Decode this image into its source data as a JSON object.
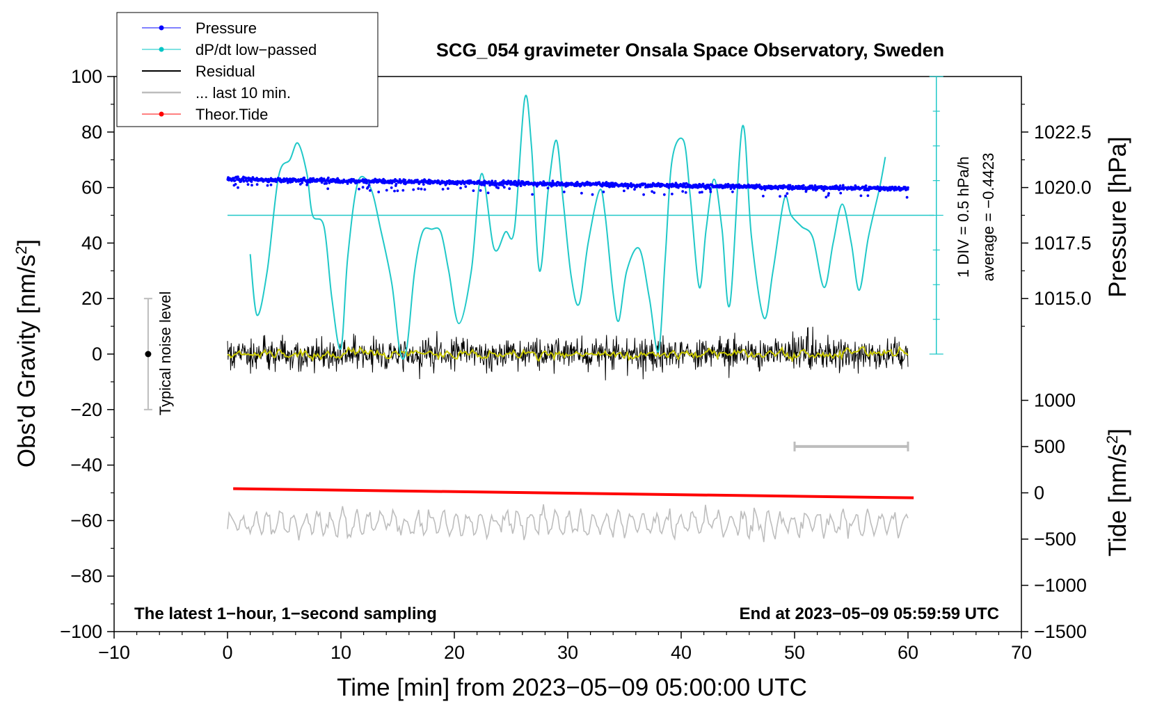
{
  "chart_data": {
    "type": "line",
    "title": "SCG_054 gravimeter Onsala Space Observatory, Sweden",
    "xlabel": "Time [min] from 2023−05−09 05:00:00 UTC",
    "ylabel_left": "Obs'd Gravity [nm/s",
    "ylabel_left_sup": "2",
    "ylabel_left_close": "]",
    "ylabel_right_pressure": "Pressure [hPa]",
    "ylabel_right_tide": "Tide [nm/s",
    "ylabel_right_tide_sup": "2",
    "ylabel_right_tide_close": "]",
    "xlim": [
      -10,
      70
    ],
    "ylim": [
      -100,
      100
    ],
    "x_ticks": [
      -10,
      0,
      10,
      20,
      30,
      40,
      50,
      60,
      70
    ],
    "x_tick_labels": [
      "−10",
      "0",
      "10",
      "20",
      "30",
      "40",
      "50",
      "60",
      "70"
    ],
    "y_ticks": [
      -100,
      -80,
      -60,
      -40,
      -20,
      0,
      20,
      40,
      60,
      80,
      100
    ],
    "y_tick_labels": [
      "−100",
      "−80",
      "−60",
      "−40",
      "−20",
      "0",
      "20",
      "40",
      "60",
      "80",
      "100"
    ],
    "pressure_axis": {
      "ticks": [
        1015.0,
        1017.5,
        1020.0,
        1022.5
      ],
      "tick_labels": [
        "1015.0",
        "1017.5",
        "1020.0",
        "1022.5"
      ],
      "gravity_equiv": [
        20,
        40,
        60,
        80
      ]
    },
    "tide_axis": {
      "ticks": [
        -1500,
        -1000,
        -500,
        0,
        500,
        1000
      ],
      "tick_labels": [
        "−1500",
        "−1000",
        "−500",
        "0",
        "500",
        "1000"
      ],
      "gravity_equiv": [
        -100,
        -83.33,
        -66.67,
        -50,
        -33.33,
        -16.67
      ]
    },
    "legend": [
      {
        "label": "Pressure",
        "color": "#0000ff",
        "marker": true
      },
      {
        "label": "dP/dt low−passed",
        "color": "#00c5c5",
        "marker": true
      },
      {
        "label": "Residual",
        "color": "#000000",
        "marker": false
      },
      {
        "label": "... last 10 min.",
        "color": "#bdbdbd",
        "marker": false
      },
      {
        "label": "Theor.Tide",
        "color": "#ff0000",
        "marker": true
      }
    ],
    "series": [
      {
        "name": "Pressure",
        "color": "#0000ff",
        "x_range": [
          0,
          60
        ],
        "gravity_start": 63,
        "gravity_end": 59.5,
        "scatter_sd": 0.9
      },
      {
        "name": "dP/dt low−passed",
        "color": "#20c8c8",
        "x": [
          2,
          2.6,
          3.5,
          4.5,
          5.5,
          6.2,
          7.0,
          7.5,
          8.5,
          9.2,
          10.0,
          10.6,
          11.5,
          12.6,
          13.5,
          14.5,
          15.2,
          15.8,
          16.5,
          17.2,
          18.0,
          18.8,
          19.5,
          20.4,
          21.5,
          22.4,
          23.5,
          24.5,
          25.3,
          26.2,
          26.8,
          27.5,
          28.3,
          29.0,
          29.6,
          30.3,
          31.0,
          31.8,
          32.8,
          33.3,
          34.0,
          34.5,
          35.2,
          36.3,
          37.2,
          38.0,
          38.6,
          39.2,
          40.2,
          40.8,
          41.6,
          42.2,
          42.9,
          43.6,
          44.3,
          45.4,
          46.2,
          47.3,
          48.1,
          49.1,
          49.7,
          50.6,
          51.6,
          52.6,
          53.4,
          54.2,
          55.0,
          55.7,
          56.5,
          57.5,
          58.0
        ],
        "y": [
          36,
          14,
          30,
          64,
          70,
          76,
          65,
          50,
          46,
          20,
          2,
          35,
          62,
          60,
          45,
          25,
          1,
          2,
          30,
          44,
          45,
          44,
          30,
          11,
          30,
          65,
          38,
          44,
          45,
          92,
          75,
          30,
          60,
          77,
          55,
          28,
          18,
          40,
          59,
          50,
          22,
          12,
          30,
          38,
          20,
          1,
          35,
          70,
          77,
          57,
          24,
          45,
          63,
          45,
          18,
          82,
          42,
          13,
          30,
          56,
          50,
          46,
          42,
          24,
          40,
          54,
          40,
          23,
          42,
          60,
          71
        ]
      },
      {
        "name": "Residual",
        "color": "#000000",
        "x_range": [
          0,
          60
        ],
        "center": 0,
        "amplitude": 5
      },
      {
        "name": "Residual smoothed",
        "color": "#c8c800",
        "x_range": [
          0,
          60
        ],
        "center": 0,
        "amplitude": 1.5
      },
      {
        "name": "... last 10 min.",
        "color": "#bdbdbd",
        "x_range": [
          0,
          60
        ],
        "center": -61,
        "amplitude": 4
      },
      {
        "name": "Theor.Tide",
        "color": "#ff0000",
        "x": [
          0.5,
          60.5
        ],
        "y": [
          -48.5,
          -51.8
        ]
      }
    ],
    "reference_line_y": 50,
    "div_scale_label": "1 DIV = 0.5 hPa/h",
    "average_label": "average = −0.4423",
    "noise_label": "Typical noise level",
    "noise_range": [
      -20,
      20
    ],
    "noise_x": -7,
    "bar_last10": {
      "x": [
        50,
        60
      ],
      "y": -33.3
    },
    "footer_left": "The latest 1−hour, 1−second sampling",
    "footer_right": "End at 2023−05−09 05:59:59 UTC"
  }
}
